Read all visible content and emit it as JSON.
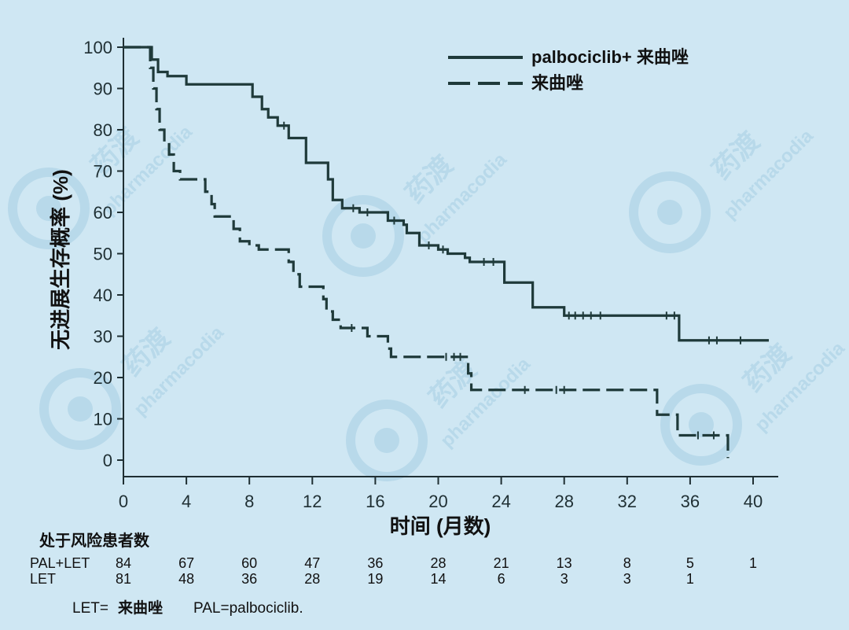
{
  "chart_data": {
    "type": "line",
    "title": "",
    "xlabel": "时间 (月数)",
    "ylabel": "无进展生存概率 (%)",
    "xlim": [
      0,
      41
    ],
    "ylim": [
      0,
      100
    ],
    "x_ticks": [
      0,
      4,
      8,
      12,
      16,
      20,
      24,
      28,
      32,
      36,
      40
    ],
    "y_ticks": [
      0,
      10,
      20,
      30,
      40,
      50,
      60,
      70,
      80,
      90,
      100
    ],
    "legend_position": "top-right",
    "series": [
      {
        "name": "palbociclib+ 来曲唑",
        "style": "solid",
        "color": "#1f3a3a",
        "points": [
          [
            0,
            100
          ],
          [
            1.5,
            100
          ],
          [
            1.8,
            97
          ],
          [
            2.2,
            94
          ],
          [
            2.8,
            93
          ],
          [
            4,
            91
          ],
          [
            7.5,
            91
          ],
          [
            8.2,
            88
          ],
          [
            8.8,
            85
          ],
          [
            9.2,
            83
          ],
          [
            9.8,
            81
          ],
          [
            10.5,
            78
          ],
          [
            11.3,
            78
          ],
          [
            11.6,
            72
          ],
          [
            12.7,
            72
          ],
          [
            13,
            68
          ],
          [
            13.3,
            63
          ],
          [
            13.9,
            61
          ],
          [
            15,
            60
          ],
          [
            16.3,
            60
          ],
          [
            16.8,
            58
          ],
          [
            17.8,
            57
          ],
          [
            18,
            55
          ],
          [
            18.6,
            55
          ],
          [
            18.8,
            52
          ],
          [
            20,
            51
          ],
          [
            20.6,
            50
          ],
          [
            21.7,
            49
          ],
          [
            22,
            48
          ],
          [
            24,
            48
          ],
          [
            24.2,
            43
          ],
          [
            25.7,
            43
          ],
          [
            26,
            37
          ],
          [
            27.7,
            37
          ],
          [
            28,
            35
          ],
          [
            35.2,
            35
          ],
          [
            35.3,
            29
          ],
          [
            41,
            29
          ]
        ],
        "censor_x": [
          10.2,
          14.6,
          15.5,
          17.2,
          19.4,
          20.3,
          22.9,
          23.5,
          28.3,
          28.7,
          29.2,
          29.7,
          30.3,
          34.5,
          35,
          37.2,
          37.7,
          39.2
        ]
      },
      {
        "name": "来曲唑",
        "style": "dashed",
        "color": "#1f3a3a",
        "points": [
          [
            0,
            100
          ],
          [
            1.5,
            100
          ],
          [
            1.7,
            95
          ],
          [
            1.9,
            90
          ],
          [
            2.1,
            85
          ],
          [
            2.3,
            80
          ],
          [
            2.6,
            77
          ],
          [
            2.9,
            74
          ],
          [
            3.2,
            70
          ],
          [
            3.6,
            68
          ],
          [
            5,
            68
          ],
          [
            5.2,
            65
          ],
          [
            5.6,
            62
          ],
          [
            5.8,
            59
          ],
          [
            6.8,
            59
          ],
          [
            7,
            56
          ],
          [
            7.4,
            53
          ],
          [
            8,
            52
          ],
          [
            8.6,
            51
          ],
          [
            10,
            51
          ],
          [
            10.5,
            48
          ],
          [
            10.8,
            45
          ],
          [
            11.2,
            42
          ],
          [
            12.3,
            42
          ],
          [
            12.7,
            39
          ],
          [
            12.9,
            36
          ],
          [
            13.3,
            34
          ],
          [
            13.8,
            32
          ],
          [
            15.3,
            32
          ],
          [
            15.5,
            30
          ],
          [
            16.5,
            30
          ],
          [
            16.8,
            27
          ],
          [
            17,
            25
          ],
          [
            21.7,
            25
          ],
          [
            21.9,
            21
          ],
          [
            22.1,
            17
          ],
          [
            33.7,
            17
          ],
          [
            33.9,
            11
          ],
          [
            35.1,
            11
          ],
          [
            35.2,
            6
          ],
          [
            38.4,
            6
          ],
          [
            38.4,
            0.5
          ]
        ],
        "censor_x": [
          14.5,
          20.5,
          21,
          21.4,
          25.5,
          27.5,
          28,
          36.5,
          37.5
        ]
      }
    ],
    "risk_table": {
      "title": "处于风险患者数",
      "times": [
        0,
        4,
        8,
        12,
        16,
        20,
        24,
        28,
        32,
        36,
        40
      ],
      "rows": [
        {
          "label": "PAL+LET",
          "counts": [
            "84",
            "67",
            "60",
            "47",
            "36",
            "28",
            "21",
            "13",
            "8",
            "5",
            "1"
          ]
        },
        {
          "label": "LET",
          "counts": [
            "81",
            "48",
            "36",
            "28",
            "19",
            "14",
            "6",
            "3",
            "3",
            "1",
            ""
          ]
        }
      ]
    },
    "footnote": {
      "let_prefix": "LET= ",
      "let_value": "来曲唑",
      "pal": "PAL=palbociclib."
    }
  },
  "watermark": {
    "brand_cn": "药渡",
    "brand_en": "pharmacodia"
  }
}
